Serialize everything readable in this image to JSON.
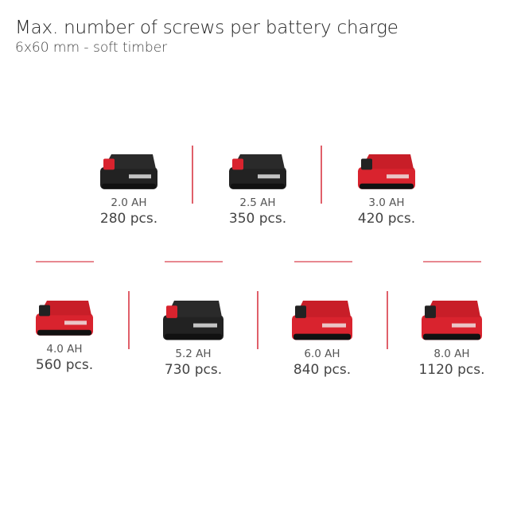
{
  "header": {
    "title": "Max. number of screws per battery charge",
    "subtitle": "6x60 mm - soft timber"
  },
  "colors": {
    "accent": "#d9232e",
    "battery_dark": "#222222",
    "divider": "#e0606a"
  },
  "batteries": [
    {
      "capacity": "2.0 AH",
      "count": "280 pcs.",
      "style": "dark"
    },
    {
      "capacity": "2.5 AH",
      "count": "350 pcs.",
      "style": "dark"
    },
    {
      "capacity": "3.0 AH",
      "count": "420 pcs.",
      "style": "red"
    },
    {
      "capacity": "4.0 AH",
      "count": "560 pcs.",
      "style": "red"
    },
    {
      "capacity": "5.2 AH",
      "count": "730 pcs.",
      "style": "dark"
    },
    {
      "capacity": "6.0 AH",
      "count": "840 pcs.",
      "style": "red"
    },
    {
      "capacity": "8.0 AH",
      "count": "1120 pcs.",
      "style": "red"
    }
  ]
}
